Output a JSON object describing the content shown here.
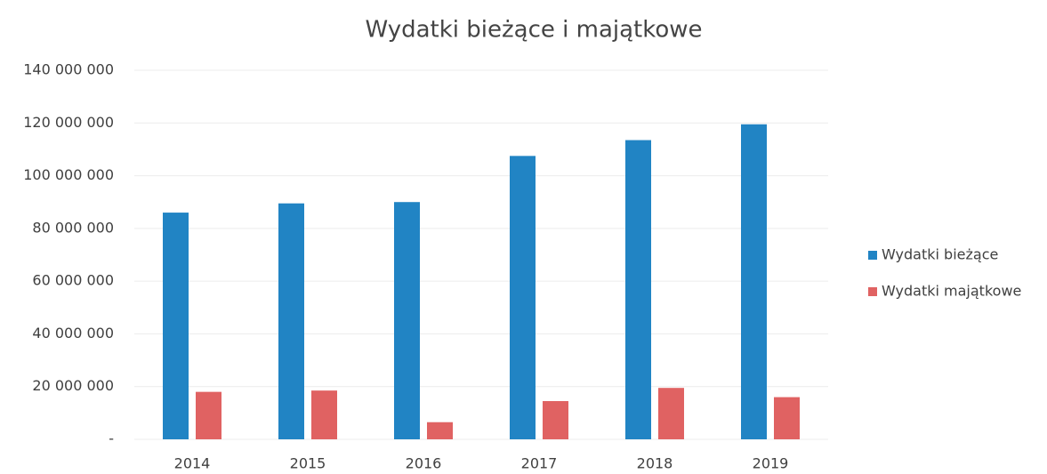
{
  "chart_data": {
    "type": "bar",
    "title": "Wydatki bieżące i majątkowe",
    "categories": [
      "2014",
      "2015",
      "2016",
      "2017",
      "2018",
      "2019"
    ],
    "series": [
      {
        "name": "Wydatki bieżące",
        "color": "#2184c4",
        "values": [
          86000000,
          89500000,
          90000000,
          107500000,
          113500000,
          119500000
        ]
      },
      {
        "name": "Wydatki majątkowe",
        "color": "#e06262",
        "values": [
          18000000,
          18500000,
          6500000,
          14500000,
          19500000,
          16000000
        ]
      }
    ],
    "ylim": [
      0,
      140000000
    ],
    "yticks": [
      {
        "value": 0,
        "label": "-"
      },
      {
        "value": 20000000,
        "label": "20 000 000"
      },
      {
        "value": 40000000,
        "label": "40 000 000"
      },
      {
        "value": 60000000,
        "label": "60 000 000"
      },
      {
        "value": 80000000,
        "label": "80 000 000"
      },
      {
        "value": 100000000,
        "label": "100 000 000"
      },
      {
        "value": 120000000,
        "label": "120 000 000"
      },
      {
        "value": 140000000,
        "label": "140 000 000"
      }
    ],
    "grid": true,
    "legend": "right"
  }
}
